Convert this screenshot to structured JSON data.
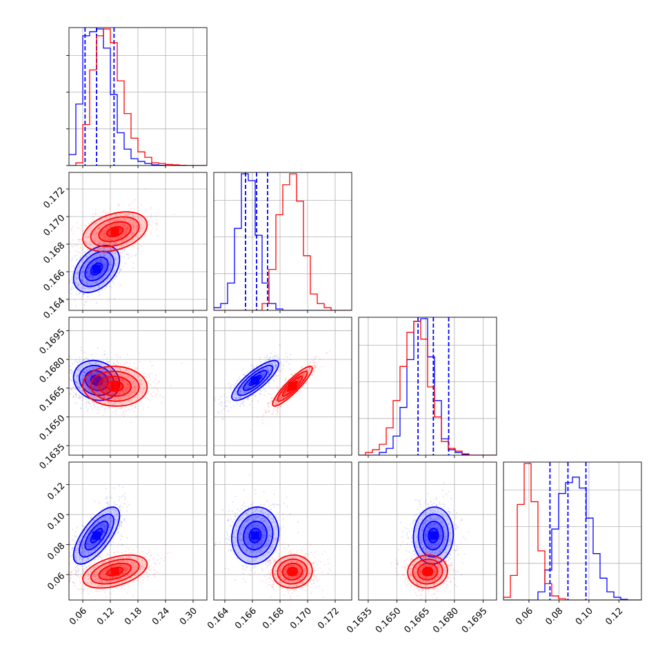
{
  "chart_data": {
    "type": "corner",
    "description_free": true,
    "colors": {
      "series_a": "#0000ff",
      "series_b": "#ff0000",
      "grid": "#b0b0b0"
    },
    "params": [
      {
        "range": [
          0.03,
          0.33
        ],
        "ticks": [
          "0.06",
          "0.12",
          "0.18",
          "0.24",
          "0.30"
        ],
        "tickvals": [
          0.06,
          0.12,
          0.18,
          0.24,
          0.3
        ]
      },
      {
        "range": [
          0.1632,
          0.1732
        ],
        "ticks": [
          "0.164",
          "0.166",
          "0.168",
          "0.170",
          "0.172"
        ],
        "tickvals": [
          0.164,
          0.166,
          0.168,
          0.17,
          0.172
        ]
      },
      {
        "range": [
          0.163,
          0.1702
        ],
        "ticks": [
          "0.1635",
          "0.1650",
          "0.1665",
          "0.1680",
          "0.1695"
        ],
        "tickvals": [
          0.1635,
          0.165,
          0.1665,
          0.168,
          0.1695
        ]
      },
      {
        "range": [
          0.043,
          0.135
        ],
        "ticks": [
          "0.06",
          "0.08",
          "0.10",
          "0.12"
        ],
        "tickvals": [
          0.06,
          0.08,
          0.1,
          0.12
        ]
      }
    ],
    "series": [
      {
        "color": "#0000ff",
        "means": [
          0.09,
          0.1662,
          0.1669,
          0.086
        ],
        "sds": [
          0.025,
          0.00085,
          0.00052,
          0.0095
        ],
        "correlation": [
          [
            1,
            0.4,
            -0.15,
            0.7
          ],
          [
            0.4,
            1,
            0.82,
            0.1
          ],
          [
            -0.15,
            0.82,
            1,
            0.05
          ],
          [
            0.7,
            0.1,
            0.05,
            1
          ]
        ],
        "quantiles": [
          [
            0.065,
            0.09,
            0.128
          ],
          [
            0.1655,
            0.1663,
            0.1671
          ],
          [
            0.1661,
            0.1669,
            0.1677
          ],
          [
            0.074,
            0.086,
            0.098
          ]
        ],
        "histograms": [
          [
            0.08,
            0.45,
            0.95,
            0.98,
            1.0,
            0.86,
            0.52,
            0.24,
            0.12,
            0.05,
            0.03,
            0.015,
            0.005,
            0.002,
            0,
            0,
            0,
            0,
            0,
            0
          ],
          [
            0.02,
            0.05,
            0.2,
            0.6,
            1.0,
            0.95,
            0.55,
            0.2,
            0.05,
            0.01,
            0,
            0,
            0,
            0,
            0,
            0,
            0,
            0,
            0,
            0
          ],
          [
            0,
            0,
            0,
            0.02,
            0.05,
            0.14,
            0.35,
            0.7,
            0.98,
            1.0,
            0.72,
            0.4,
            0.12,
            0.04,
            0.02,
            0.005,
            0,
            0,
            0,
            0
          ],
          [
            0,
            0,
            0,
            0,
            0,
            0.06,
            0.22,
            0.52,
            0.78,
            0.86,
            0.9,
            0.82,
            0.6,
            0.34,
            0.16,
            0.06,
            0.02,
            0.005,
            0,
            0
          ]
        ]
      },
      {
        "color": "#ff0000",
        "means": [
          0.13,
          0.1689,
          0.1666,
          0.062
        ],
        "sds": [
          0.035,
          0.00072,
          0.00052,
          0.0055
        ],
        "correlation": [
          [
            1,
            0.35,
            -0.05,
            0.45
          ],
          [
            0.35,
            1,
            0.9,
            0.05
          ],
          [
            -0.05,
            0.9,
            1,
            0.05
          ],
          [
            0.45,
            0.05,
            0.05,
            1
          ]
        ],
        "quantiles": [],
        "histograms": [
          [
            0,
            0.02,
            0.3,
            0.7,
            0.95,
            1.0,
            0.9,
            0.62,
            0.38,
            0.2,
            0.1,
            0.06,
            0.02,
            0.015,
            0.008,
            0.005,
            0.002,
            0,
            0,
            0
          ],
          [
            0,
            0,
            0,
            0,
            0,
            0,
            0,
            0.05,
            0.3,
            0.7,
            0.92,
            1.0,
            0.8,
            0.4,
            0.12,
            0.05,
            0.02,
            0,
            0,
            0
          ],
          [
            0,
            0.02,
            0.04,
            0.08,
            0.2,
            0.4,
            0.65,
            0.9,
            0.98,
            0.85,
            0.5,
            0.28,
            0.1,
            0.05,
            0.03,
            0.01,
            0,
            0,
            0,
            0
          ],
          [
            0.02,
            0.18,
            0.7,
            1.0,
            0.72,
            0.36,
            0.12,
            0.03,
            0.01,
            0,
            0,
            0,
            0,
            0,
            0,
            0,
            0,
            0,
            0,
            0
          ]
        ]
      }
    ],
    "grid": true
  }
}
